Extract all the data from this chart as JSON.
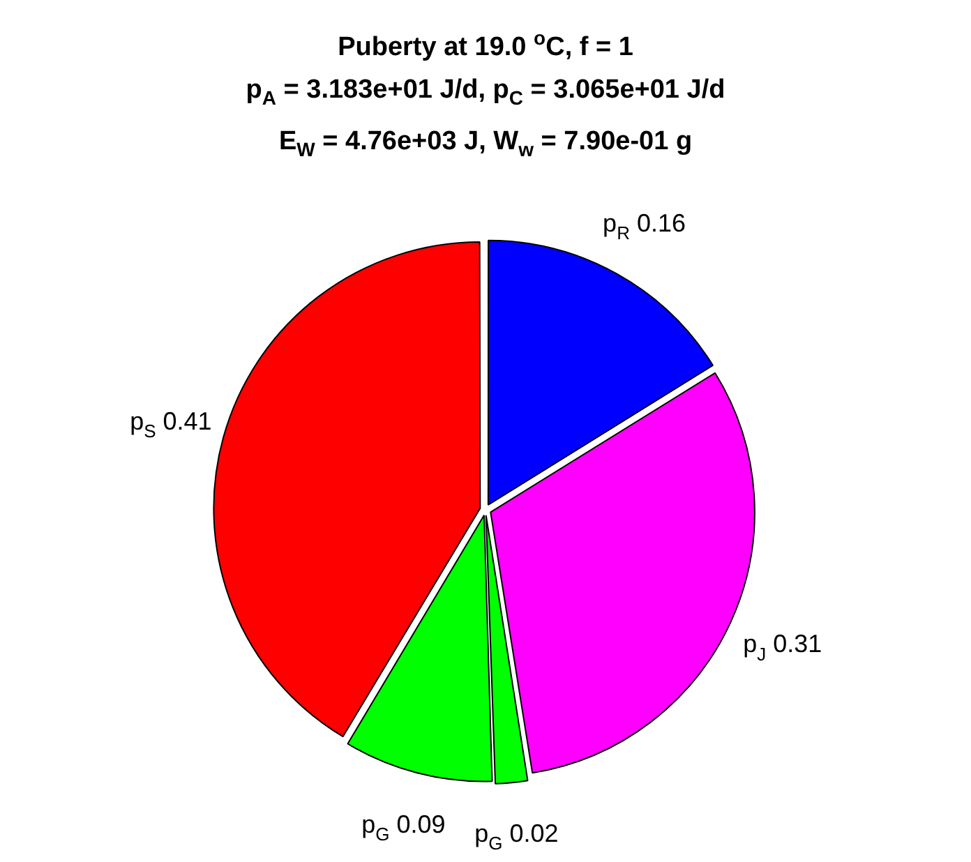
{
  "chart_data": {
    "type": "pie",
    "title": "Puberty at 19.0 $^{o}$C, f = 1\np$_{A}$ = 3.183e+01 J/d,  p$_{C}$ = 3.065e+01 J/d\nE$_{W}$ = 4.76e+03 J, W$_{w}$ = 7.90e-01 g",
    "categories": [
      "p$_{R}$",
      "p$_{J}$",
      "p$_{G}$",
      "p$_{G}$",
      "p$_{S}$"
    ],
    "values": [
      0.16,
      0.31,
      0.02,
      0.09,
      0.41
    ],
    "colors": [
      "#0000ff",
      "#ff00ff",
      "#00ff00",
      "#00ff00",
      "#ff0000"
    ],
    "data_labels": true,
    "legend": false
  }
}
